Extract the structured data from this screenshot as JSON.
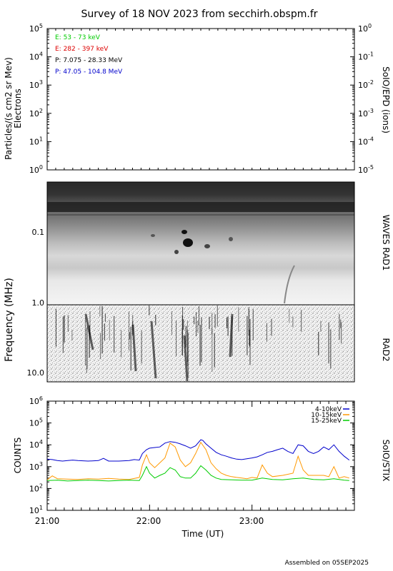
{
  "header": {
    "title": "Survey of 18 NOV 2023 from secchirh.obspm.fr"
  },
  "footer": {
    "assembled": "Assembled on 05SEP2025"
  },
  "colors": {
    "green": "#00cc00",
    "red": "#dd0000",
    "black": "#000000",
    "blue": "#0000cc",
    "orange": "#ff9900"
  },
  "chart_data": [
    {
      "type": "line",
      "panel": "SoIO/EPD",
      "ylabel": "Particles/(s cm2 sr Mev)",
      "ylabel2": "Electrons",
      "right_label": "SoIO/EPD (ions)",
      "left_ticks": [
        "10^0",
        "10^1",
        "10^2",
        "10^3",
        "10^4",
        "10^5"
      ],
      "right_ticks": [
        "10^-5",
        "10^-4",
        "10^-3",
        "10^-2",
        "10^-1",
        "10^0"
      ],
      "ylim": [
        1,
        100000
      ],
      "series": [
        {
          "name": "E: 53 - 73 keV",
          "color": "#00cc00",
          "values": []
        },
        {
          "name": "E: 282 - 397 keV",
          "color": "#dd0000",
          "values": []
        },
        {
          "name": "P: 7.075 - 28.33 MeV",
          "color": "#000000",
          "values": []
        },
        {
          "name": "P: 47.05 - 104.8 MeV",
          "color": "#0000cc",
          "values": []
        }
      ]
    },
    {
      "type": "heatmap",
      "panel": "WAVES RAD1 / RAD2",
      "ylabel": "Frequency (MHz)",
      "y_ticks": [
        "0.1",
        "1.0",
        "10.0"
      ],
      "right_label_top": "WAVES RAD1",
      "right_label_bottom": "RAD2"
    },
    {
      "type": "line",
      "panel": "SoIO/STIX",
      "ylabel": "COUNTS",
      "right_label": "SoIO/STIX",
      "xlabel": "Time (UT)",
      "x_ticks": [
        "21:00",
        "22:00",
        "23:00"
      ],
      "y_ticks": [
        "10^1",
        "10^2",
        "10^3",
        "10^4",
        "10^5",
        "10^6"
      ],
      "ylim": [
        10,
        1000000
      ],
      "x_unit": "hours UT",
      "legend": "top-right",
      "series": [
        {
          "name": "4-10keV",
          "color": "#0000cc",
          "x": [
            21.0,
            21.05,
            21.1,
            21.15,
            21.2,
            21.25,
            21.3,
            21.4,
            21.5,
            21.55,
            21.6,
            21.7,
            21.8,
            21.85,
            21.9,
            21.93,
            21.97,
            22.0,
            22.05,
            22.1,
            22.15,
            22.2,
            22.25,
            22.3,
            22.35,
            22.4,
            22.45,
            22.5,
            22.52,
            22.55,
            22.6,
            22.65,
            22.7,
            22.75,
            22.8,
            22.85,
            22.9,
            22.95,
            23.0,
            23.05,
            23.1,
            23.15,
            23.2,
            23.25,
            23.3,
            23.35,
            23.4,
            23.45,
            23.5,
            23.55,
            23.6,
            23.65,
            23.7,
            23.75,
            23.8,
            23.85,
            23.9,
            23.95
          ],
          "values": [
            2200,
            2100,
            1900,
            1800,
            1900,
            2000,
            1900,
            1800,
            1900,
            2400,
            1800,
            1800,
            1900,
            2100,
            2000,
            4000,
            6000,
            7000,
            7500,
            8000,
            12000,
            14000,
            13000,
            11000,
            9000,
            7000,
            9000,
            17000,
            16000,
            11000,
            7000,
            4500,
            3500,
            3000,
            2500,
            2200,
            2100,
            2300,
            2500,
            2800,
            3500,
            4500,
            5000,
            6000,
            7000,
            5000,
            4000,
            10000,
            9000,
            5000,
            4000,
            5000,
            8000,
            6000,
            10000,
            5000,
            3000,
            2000
          ]
        },
        {
          "name": "10-15keV",
          "color": "#ff9900",
          "x": [
            21.0,
            21.05,
            21.1,
            21.2,
            21.3,
            21.4,
            21.5,
            21.6,
            21.7,
            21.8,
            21.9,
            21.93,
            21.97,
            22.0,
            22.05,
            22.1,
            22.15,
            22.2,
            22.25,
            22.3,
            22.35,
            22.4,
            22.45,
            22.5,
            22.55,
            22.6,
            22.65,
            22.7,
            22.75,
            22.8,
            22.85,
            22.9,
            22.95,
            23.0,
            23.05,
            23.1,
            23.15,
            23.2,
            23.3,
            23.4,
            23.45,
            23.5,
            23.55,
            23.6,
            23.7,
            23.75,
            23.8,
            23.85,
            23.9,
            23.95
          ],
          "values": [
            250,
            380,
            280,
            270,
            260,
            280,
            270,
            290,
            270,
            260,
            320,
            1200,
            3500,
            1500,
            900,
            1500,
            2500,
            12000,
            8000,
            2000,
            1000,
            1500,
            4000,
            13000,
            6000,
            1500,
            800,
            500,
            400,
            350,
            320,
            300,
            280,
            320,
            300,
            1200,
            500,
            350,
            400,
            500,
            3000,
            700,
            400,
            400,
            400,
            350,
            1000,
            300,
            350,
            300
          ]
        },
        {
          "name": "15-25keV",
          "color": "#00cc00",
          "x": [
            21.0,
            21.1,
            21.2,
            21.3,
            21.4,
            21.5,
            21.6,
            21.7,
            21.8,
            21.9,
            21.93,
            21.97,
            22.0,
            22.05,
            22.1,
            22.15,
            22.2,
            22.25,
            22.3,
            22.35,
            22.4,
            22.45,
            22.5,
            22.55,
            22.6,
            22.65,
            22.7,
            22.8,
            22.9,
            23.0,
            23.1,
            23.2,
            23.3,
            23.4,
            23.5,
            23.6,
            23.7,
            23.8,
            23.9,
            23.95
          ],
          "values": [
            230,
            240,
            220,
            230,
            240,
            230,
            220,
            230,
            240,
            230,
            400,
            1000,
            500,
            300,
            400,
            500,
            900,
            700,
            350,
            300,
            300,
            500,
            1100,
            700,
            400,
            300,
            260,
            250,
            240,
            240,
            300,
            260,
            250,
            280,
            300,
            260,
            250,
            280,
            240,
            230
          ]
        }
      ]
    }
  ]
}
